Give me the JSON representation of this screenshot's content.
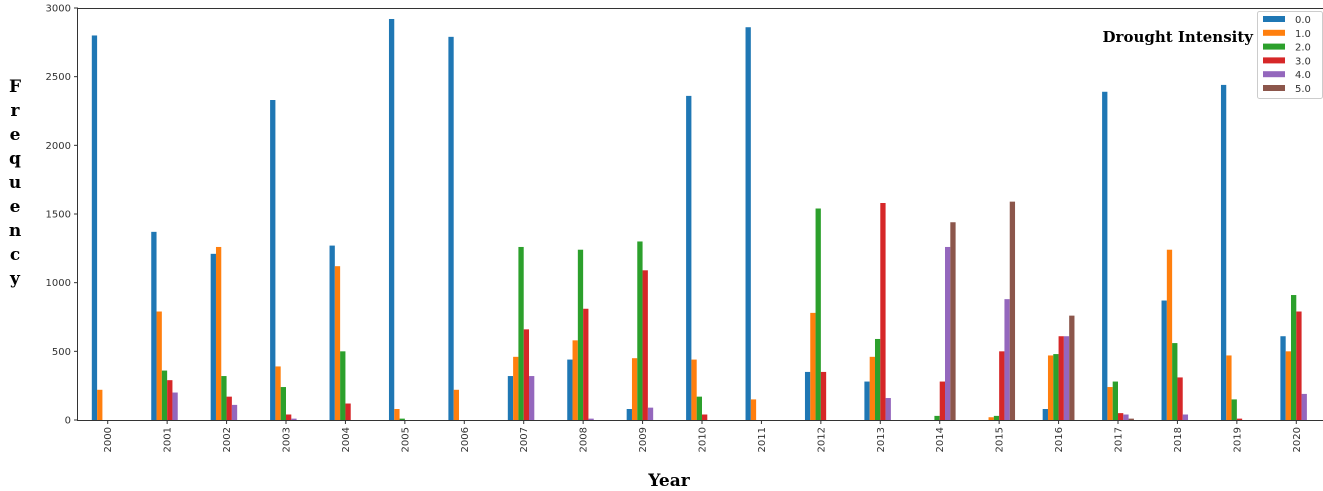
{
  "chart_data": {
    "type": "bar",
    "xlabel": "Year",
    "ylabel": "Frequency",
    "legend_title": "Drought Intensity",
    "legend_placement": "top-right",
    "grid": false,
    "ylim": [
      0,
      3000
    ],
    "yticks": [
      "0",
      "500",
      "1000",
      "1500",
      "2000",
      "2500",
      "3000"
    ],
    "categories": [
      "2000",
      "2001",
      "2002",
      "2003",
      "2004",
      "2005",
      "2006",
      "2007",
      "2008",
      "2009",
      "2010",
      "2011",
      "2012",
      "2013",
      "2014",
      "2015",
      "2016",
      "2017",
      "2018",
      "2019",
      "2020"
    ],
    "series": [
      {
        "name": "0.0",
        "color": "#1f77b4",
        "values": [
          2800,
          1370,
          1210,
          2330,
          1270,
          2920,
          2790,
          320,
          440,
          80,
          2360,
          2860,
          350,
          280,
          0,
          0,
          80,
          2390,
          870,
          2440,
          610
        ]
      },
      {
        "name": "1.0",
        "color": "#ff7f0e",
        "values": [
          220,
          790,
          1260,
          390,
          1120,
          80,
          220,
          460,
          580,
          450,
          440,
          150,
          780,
          460,
          0,
          20,
          470,
          240,
          1240,
          470,
          500
        ]
      },
      {
        "name": "2.0",
        "color": "#2ca02c",
        "values": [
          0,
          360,
          320,
          240,
          500,
          10,
          0,
          1260,
          1240,
          1300,
          170,
          0,
          1540,
          590,
          30,
          30,
          480,
          280,
          560,
          150,
          910
        ]
      },
      {
        "name": "3.0",
        "color": "#d62728",
        "values": [
          0,
          290,
          170,
          40,
          120,
          0,
          0,
          660,
          810,
          1090,
          40,
          0,
          350,
          1580,
          280,
          500,
          610,
          50,
          310,
          10,
          790
        ]
      },
      {
        "name": "4.0",
        "color": "#9467bd",
        "values": [
          0,
          200,
          110,
          10,
          0,
          0,
          0,
          320,
          10,
          90,
          0,
          0,
          0,
          160,
          1260,
          880,
          610,
          40,
          40,
          0,
          190
        ]
      },
      {
        "name": "5.0",
        "color": "#8c564b",
        "values": [
          0,
          0,
          0,
          0,
          0,
          0,
          0,
          0,
          0,
          0,
          0,
          0,
          0,
          0,
          1440,
          1590,
          760,
          10,
          0,
          0,
          0
        ]
      }
    ]
  }
}
